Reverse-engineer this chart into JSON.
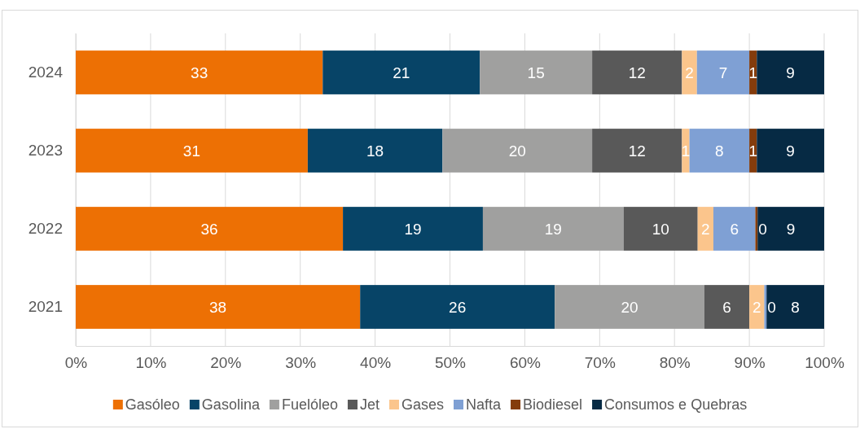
{
  "chart_data": {
    "type": "bar",
    "orientation": "horizontal",
    "stacked": true,
    "categories": [
      "2024",
      "2023",
      "2022",
      "2021"
    ],
    "series": [
      {
        "name": "Gasóleo",
        "color": "#ed7004",
        "values": [
          33,
          31,
          35.7,
          38
        ],
        "value_labels": [
          "33",
          "31",
          "36",
          "38"
        ]
      },
      {
        "name": "Gasolina",
        "color": "#074467",
        "values": [
          21,
          18,
          18.7,
          26
        ],
        "value_labels": [
          "21",
          "18",
          "19",
          "26"
        ]
      },
      {
        "name": "Fuelóleo",
        "color": "#a0a09f",
        "values": [
          15,
          20,
          18.8,
          20
        ],
        "value_labels": [
          "15",
          "20",
          "19",
          "20"
        ]
      },
      {
        "name": "Jet",
        "color": "#595959",
        "values": [
          12,
          12,
          9.9,
          6
        ],
        "value_labels": [
          "12",
          "12",
          "10",
          "6"
        ]
      },
      {
        "name": "Gases",
        "color": "#fbc58c",
        "values": [
          2,
          1,
          2.1,
          2
        ],
        "value_labels": [
          "2",
          "1",
          "2",
          "2"
        ]
      },
      {
        "name": "Nafta",
        "color": "#7fa0d4",
        "values": [
          7,
          8,
          5.6,
          0.3
        ],
        "value_labels": [
          "7",
          "8",
          "6",
          "0"
        ]
      },
      {
        "name": "Biodiesel",
        "color": "#843c0c",
        "values": [
          1,
          1,
          0.3,
          null
        ],
        "value_labels": [
          "1",
          "1",
          "0",
          null
        ]
      },
      {
        "name": "Consumos e Quebras",
        "color": "#062a44",
        "values": [
          9,
          9,
          8.9,
          7.7
        ],
        "value_labels": [
          "9",
          "9",
          "9",
          "8"
        ]
      }
    ],
    "xlim": [
      0,
      100
    ],
    "xticks": [
      {
        "value": 0,
        "label": "0%"
      },
      {
        "value": 10,
        "label": "10%"
      },
      {
        "value": 20,
        "label": "20%"
      },
      {
        "value": 30,
        "label": "30%"
      },
      {
        "value": 40,
        "label": "40%"
      },
      {
        "value": 50,
        "label": "50%"
      },
      {
        "value": 60,
        "label": "60%"
      },
      {
        "value": 70,
        "label": "70%"
      },
      {
        "value": 80,
        "label": "80%"
      },
      {
        "value": 90,
        "label": "90%"
      },
      {
        "value": 100,
        "label": "100%"
      }
    ],
    "grid": "x",
    "legend": "bottom"
  }
}
